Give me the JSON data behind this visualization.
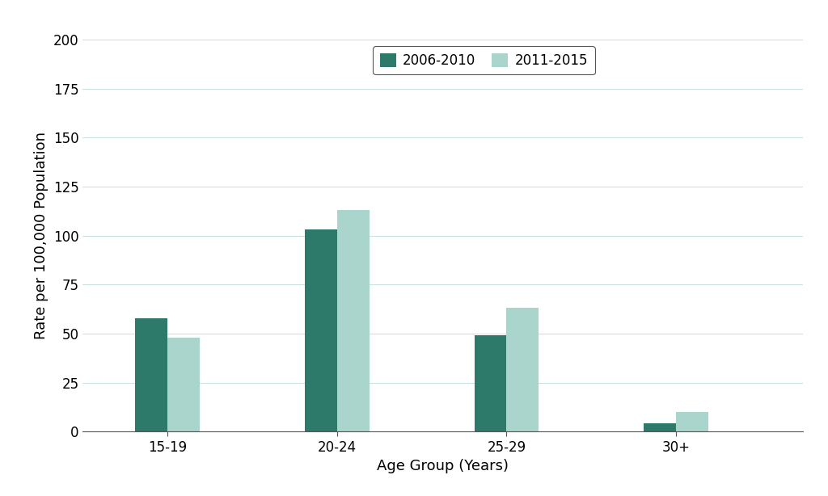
{
  "categories": [
    "15-19",
    "20-24",
    "25-29",
    "30+"
  ],
  "series": [
    {
      "label": "2006-2010",
      "values": [
        58,
        103,
        49,
        4
      ],
      "color": "#2d7a6b"
    },
    {
      "label": "2011-2015",
      "values": [
        48,
        113,
        63,
        10
      ],
      "color": "#aad5cc"
    }
  ],
  "xlabel": "Age Group (Years)",
  "ylabel": "Rate per 100,000 Population",
  "ylim": [
    0,
    200
  ],
  "yticks": [
    0,
    25,
    50,
    75,
    100,
    125,
    150,
    175,
    200
  ],
  "bar_width": 0.38,
  "x_positions": [
    1,
    3,
    5,
    7
  ],
  "legend_loc": "upper center",
  "background_color": "#ffffff",
  "grid_color": "#c8dede",
  "axis_label_fontsize": 13,
  "tick_fontsize": 12,
  "legend_fontsize": 12,
  "xlim": [
    0,
    8.5
  ]
}
